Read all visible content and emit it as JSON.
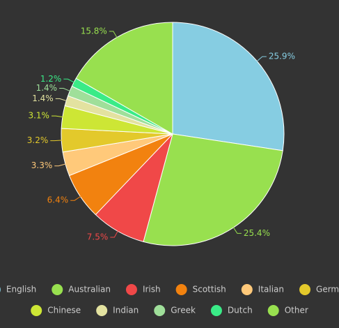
{
  "chart_data": {
    "type": "pie",
    "categories": [
      "English",
      "Australian",
      "Irish",
      "Scottish",
      "Italian",
      "German",
      "Chinese",
      "Indian",
      "Greek",
      "Dutch",
      "Other"
    ],
    "values": [
      25.9,
      25.4,
      7.5,
      6.4,
      3.3,
      3.2,
      3.1,
      1.4,
      1.4,
      1.2,
      15.8
    ],
    "value_labels": [
      "25.9%",
      "25.4%",
      "7.5%",
      "6.4%",
      "3.3%",
      "3.2%",
      "3.1%",
      "1.4%",
      "1.4%",
      "1.2%",
      "15.8%"
    ],
    "colors": [
      "#86cde2",
      "#98e04f",
      "#f04848",
      "#f2820f",
      "#ffc97a",
      "#e3c92b",
      "#cde635",
      "#e3e2a0",
      "#9fdf9a",
      "#3aeb87",
      "#98e04f"
    ],
    "legend": "bottom"
  }
}
